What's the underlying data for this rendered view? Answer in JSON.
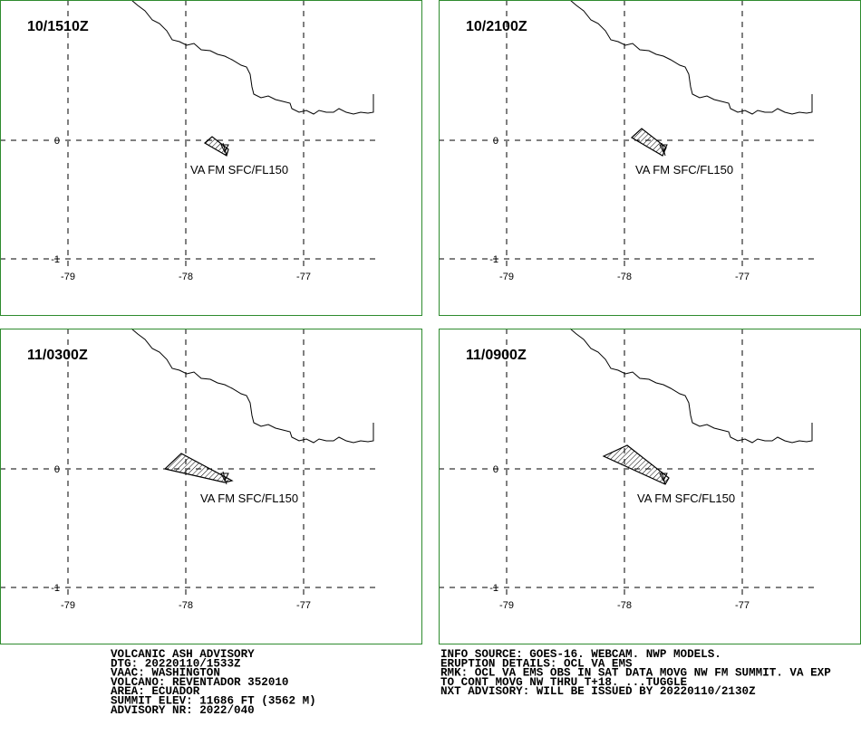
{
  "panels": [
    {
      "time": "10/1510Z",
      "label": "VA FM SFC/FL150"
    },
    {
      "time": "10/2100Z",
      "label": "VA FM SFC/FL150"
    },
    {
      "time": "11/0300Z",
      "label": "VA FM SFC/FL150"
    },
    {
      "time": "11/0900Z",
      "label": "VA FM SFC/FL150"
    }
  ],
  "axes": {
    "x_labels": [
      "-79",
      "-78",
      "-77"
    ],
    "y_labels": [
      "0",
      "-1"
    ]
  },
  "footer": {
    "left": [
      "VOLCANIC ASH ADVISORY",
      "DTG: 20220110/1533Z",
      "VAAC: WASHINGTON",
      "VOLCANO: REVENTADOR 352010",
      "AREA: ECUADOR",
      "SUMMIT ELEV: 11686 FT (3562 M)",
      "ADVISORY NR: 2022/040"
    ],
    "right": [
      "INFO SOURCE: GOES-16. WEBCAM. NWP MODELS.",
      "ERUPTION DETAILS: OCL VA EMS",
      "RMK: OCL VA EMS OBS IN SAT DATA MOVG NW FM SUMMIT. VA EXP",
      "TO CONT MOVG NW THRU T+18. ...TUGGLE",
      "NXT ADVISORY: WILL BE ISSUED BY 20220110/2130Z"
    ]
  }
}
